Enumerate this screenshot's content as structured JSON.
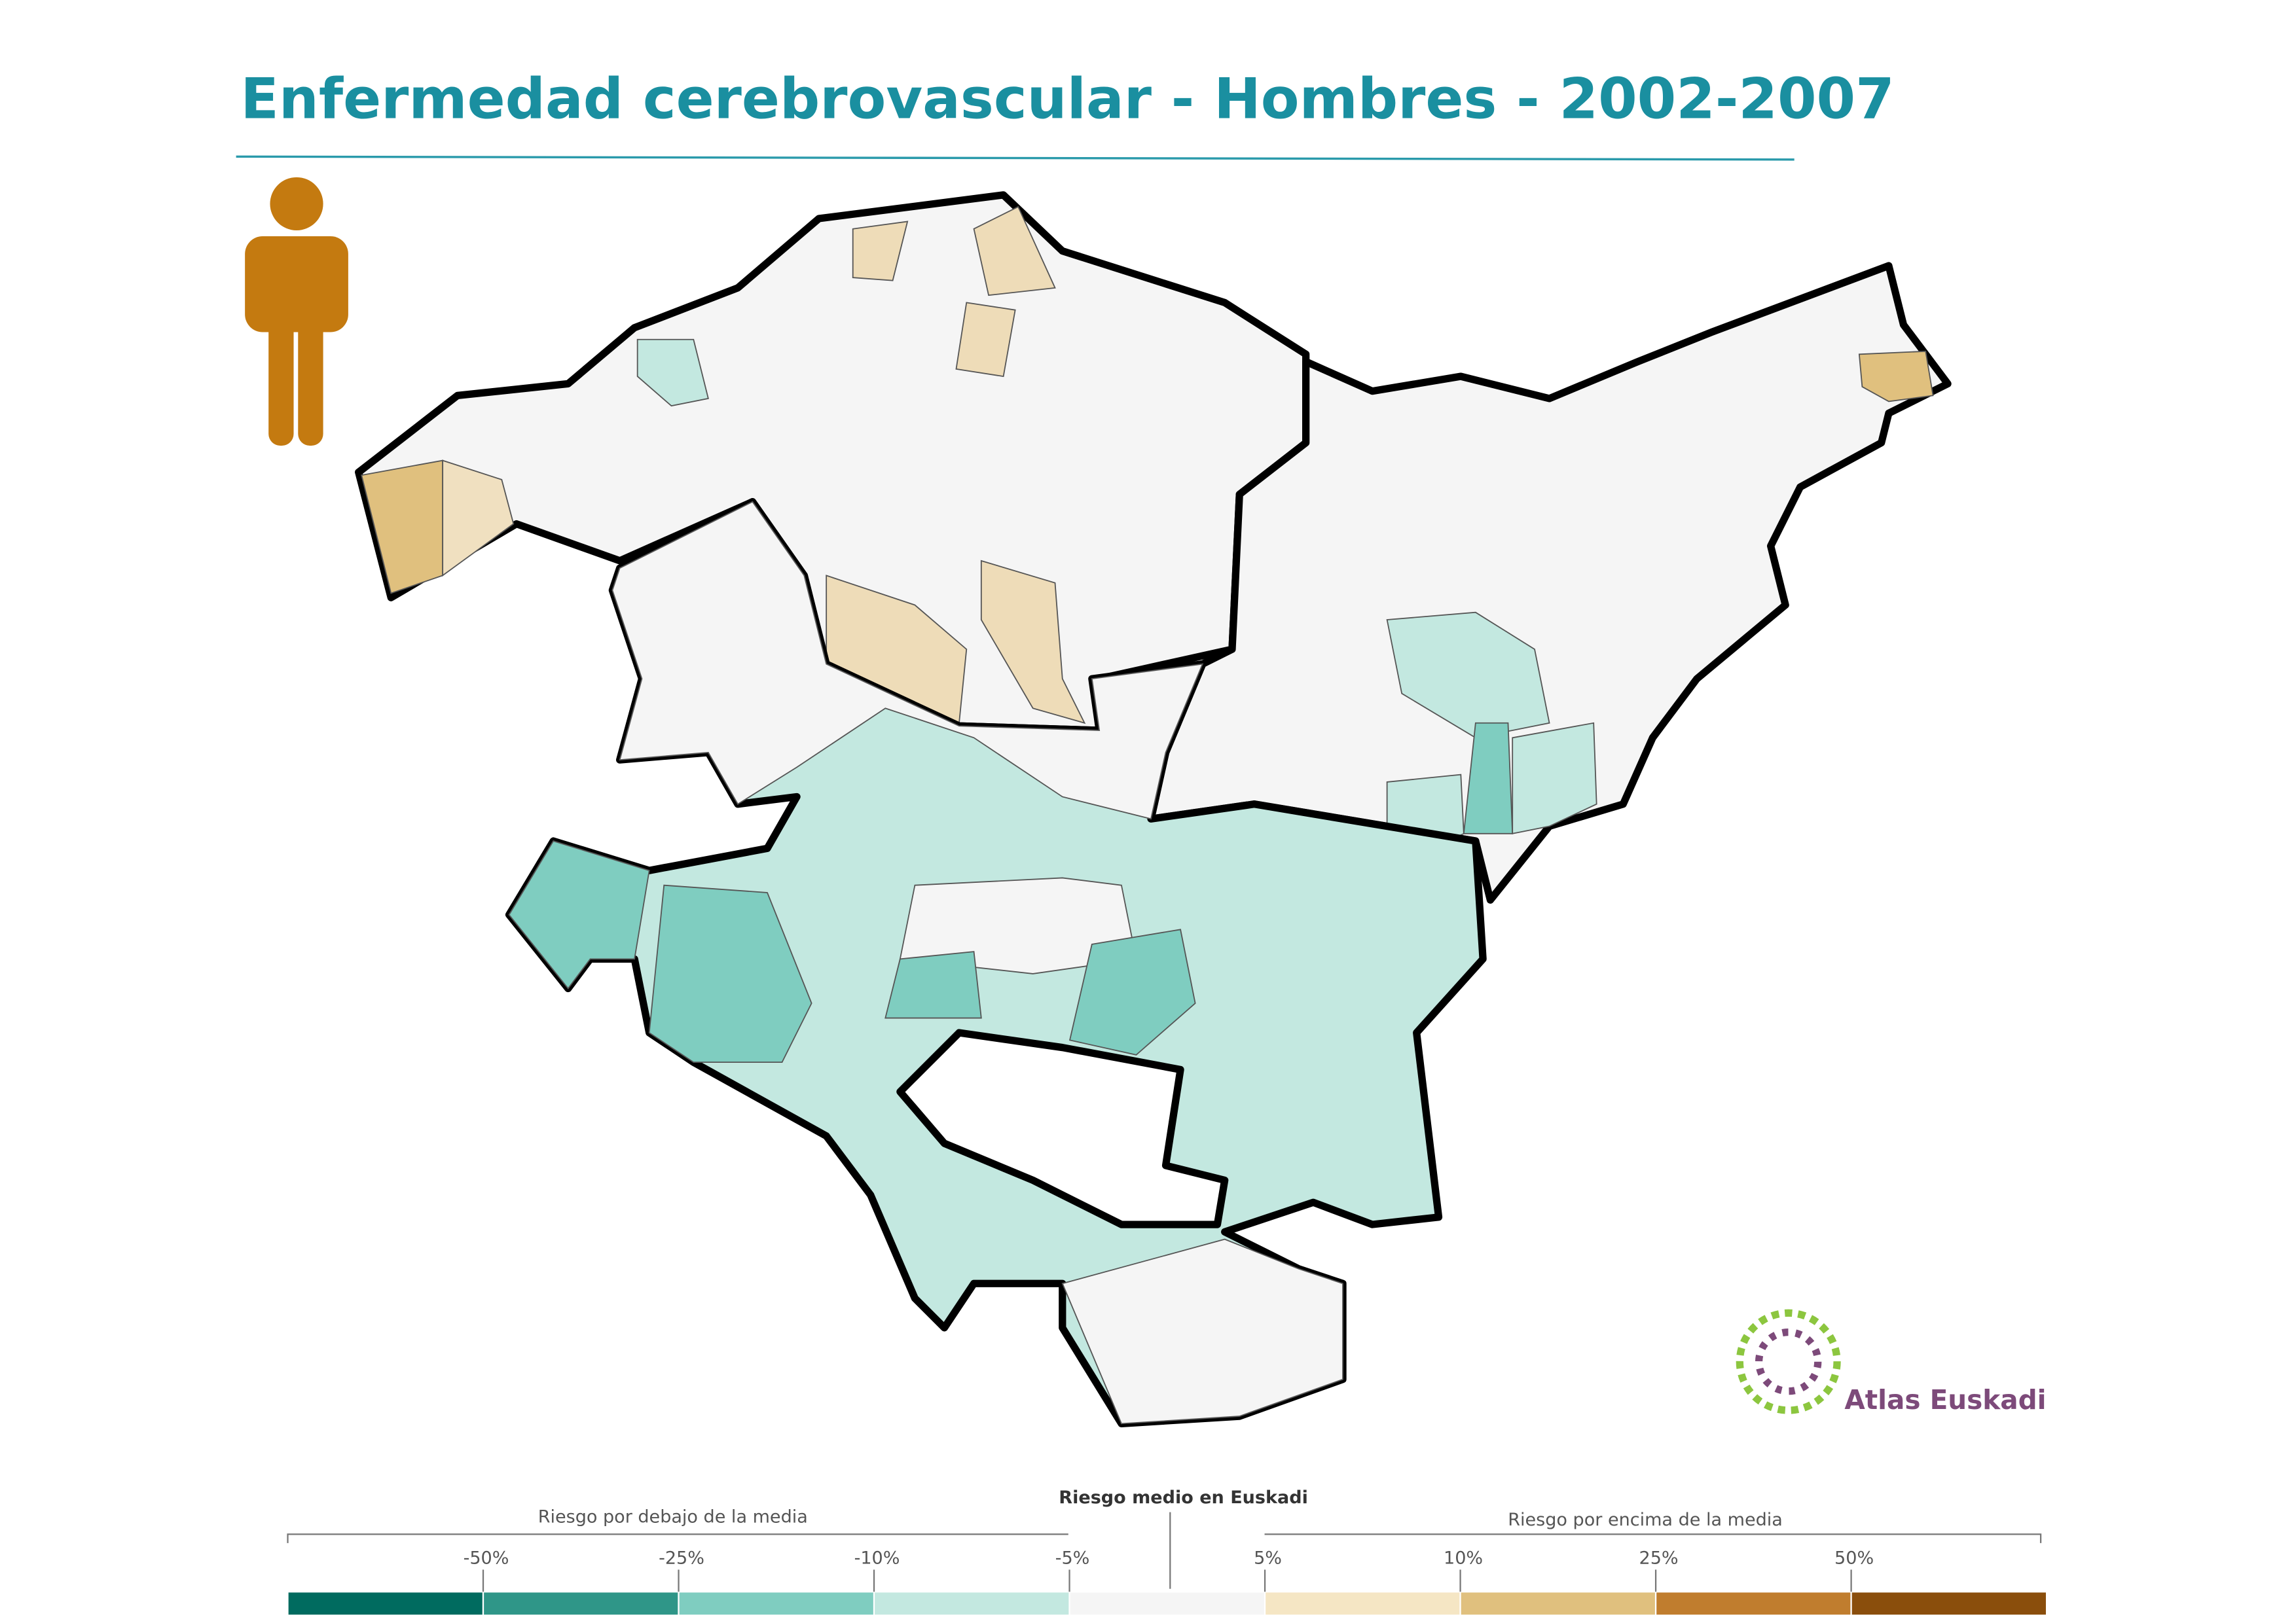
{
  "title": "Enfermedad cerebrovascular - Hombres - 2002-2007",
  "legend": {
    "below_label": "Riesgo por debajo de la media",
    "mean_label": "Riesgo medio en Euskadi",
    "above_label": "Riesgo por encima de la media",
    "thresholds": [
      "-50%",
      "-25%",
      "-10%",
      "-5%",
      "5%",
      "10%",
      "25%",
      "50%"
    ],
    "colors": [
      "#006b5f",
      "#2f9688",
      "#7fcdc0",
      "#c3e8e0",
      "#f5f5f5",
      "#f5e6c4",
      "#e0c07e",
      "#c07d2e",
      "#8a4e0c"
    ]
  },
  "logo": {
    "text": "Atlas Euskadi"
  }
}
